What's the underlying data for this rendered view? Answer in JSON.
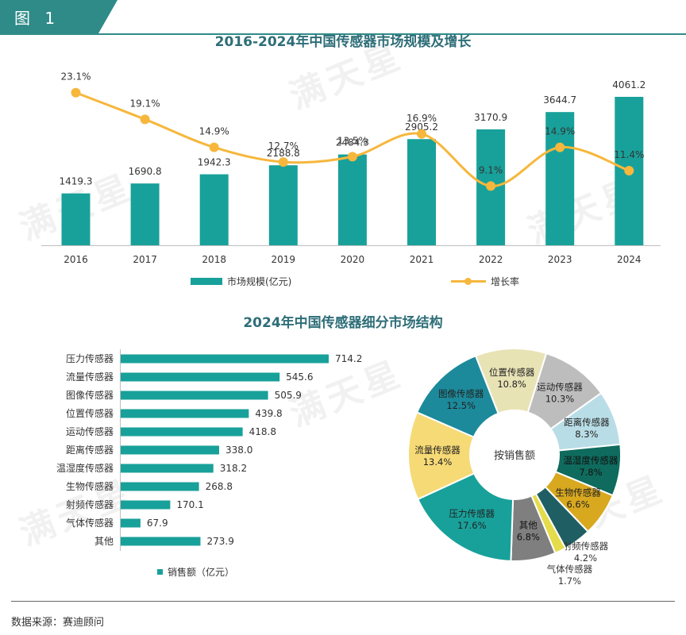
{
  "figure_tag": "图 1",
  "watermark": "满天星",
  "source": "数据来源：赛迪顾问",
  "colors": {
    "bar": "#18a19a",
    "line": "#f6b73c",
    "title": "#2e6e78",
    "tag": "#2f8b88"
  },
  "chart_data": [
    {
      "type": "bar",
      "title": "2016-2024年中国传感器市场规模及增长",
      "categories": [
        "2016",
        "2017",
        "2018",
        "2019",
        "2020",
        "2021",
        "2022",
        "2023",
        "2024"
      ],
      "series": [
        {
          "name": "市场规模(亿元)",
          "type": "bar",
          "values": [
            1419.3,
            1690.8,
            1942.3,
            2188.8,
            2484.3,
            2905.2,
            3170.9,
            3644.7,
            4061.2
          ]
        },
        {
          "name": "增长率",
          "type": "line",
          "values": [
            23.1,
            19.1,
            14.9,
            12.7,
            13.5,
            16.9,
            9.1,
            14.9,
            11.4
          ],
          "labels": [
            "23.1%",
            "19.1%",
            "14.9%",
            "12.7%",
            "13.5%",
            "16.9%",
            "9.1%",
            "14.9%",
            "11.4%"
          ]
        }
      ],
      "legend": [
        "市场规模(亿元)",
        "增长率"
      ],
      "grid": false
    },
    {
      "type": "bar",
      "orientation": "horizontal",
      "title": "2024年中国传感器细分市场结构",
      "categories": [
        "压力传感器",
        "流量传感器",
        "图像传感器",
        "位置传感器",
        "运动传感器",
        "距离传感器",
        "温湿度传感器",
        "生物传感器",
        "射频传感器",
        "气体传感器",
        "其他"
      ],
      "series": [
        {
          "name": "销售额（亿元）",
          "values": [
            714.2,
            545.6,
            505.9,
            439.8,
            418.8,
            338.0,
            318.2,
            268.8,
            170.1,
            67.9,
            273.9
          ],
          "labels": [
            "714.2",
            "545.6",
            "505.9",
            "439.8",
            "418.8",
            "338.0",
            "318.2",
            "268.8",
            "170.1",
            "67.9",
            "273.9"
          ]
        }
      ],
      "legend": [
        "销售额（亿元）"
      ]
    },
    {
      "type": "pie",
      "center_label": "按销售额",
      "slices": [
        {
          "name": "位置传感器",
          "value": 10.8,
          "label": "10.8%",
          "color": "#e8e3b5"
        },
        {
          "name": "运动传感器",
          "value": 10.3,
          "label": "10.3%",
          "color": "#bdbdbd"
        },
        {
          "name": "距离传感器",
          "value": 8.3,
          "label": "8.3%",
          "color": "#b9dde6"
        },
        {
          "name": "温湿度传感器",
          "value": 7.8,
          "label": "7.8%",
          "color": "#0f6b5d"
        },
        {
          "name": "生物传感器",
          "value": 6.6,
          "label": "6.6%",
          "color": "#d8a81f"
        },
        {
          "name": "射频传感器",
          "value": 4.2,
          "label": "4.2%",
          "color": "#1f5f63"
        },
        {
          "name": "气体传感器",
          "value": 1.7,
          "label": "1.7%",
          "color": "#e4dc4a"
        },
        {
          "name": "其他",
          "value": 6.8,
          "label": "6.8%",
          "color": "#7f7f7f"
        },
        {
          "name": "压力传感器",
          "value": 17.6,
          "label": "17.6%",
          "color": "#18a19a"
        },
        {
          "name": "流量传感器",
          "value": 13.4,
          "label": "13.4%",
          "color": "#f6da76"
        },
        {
          "name": "图像传感器",
          "value": 12.5,
          "label": "12.5%",
          "color": "#1c8a9b"
        }
      ]
    }
  ]
}
